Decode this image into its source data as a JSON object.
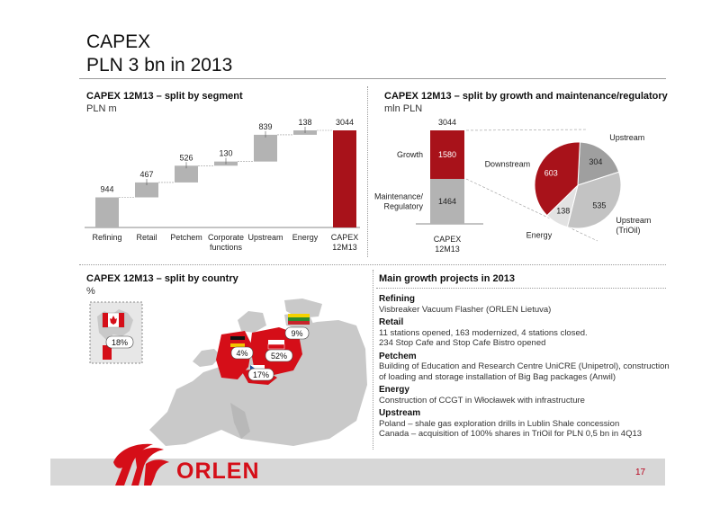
{
  "slide": {
    "title_line1": "CAPEX",
    "title_line2": "PLN 3 bn in 2013",
    "page_number": "17",
    "logo_text": "ORLEN"
  },
  "colors": {
    "bar_grey": "#b3b3b3",
    "accent_red": "#a8121a",
    "footer_grey": "#d7d7d7"
  },
  "segment_panel": {
    "title": "CAPEX 12M13 – split by segment",
    "subtitle": "PLN m"
  },
  "growth_panel": {
    "title": "CAPEX 12M13 – split by growth and maintenance/regulatory",
    "subtitle": "mln PLN"
  },
  "country_panel": {
    "title": "CAPEX 12M13 – split by country",
    "subtitle": "%",
    "labels": {
      "canada": "18%",
      "lithuania": "9%",
      "germany": "4%",
      "poland": "52%",
      "czech": "17%"
    }
  },
  "projects_panel": {
    "title": "Main growth projects in 2013",
    "items": [
      {
        "heading": "Refining",
        "lines": [
          "Visbreaker Vacuum Flasher (ORLEN Lietuva)"
        ]
      },
      {
        "heading": "Retail",
        "lines": [
          "11 stations opened, 163 modernized, 4 stations closed.",
          "234 Stop Cafe and Stop Cafe Bistro opened"
        ]
      },
      {
        "heading": "Petchem",
        "lines": [
          "Building of Education and Research Centre UniCRE (Unipetrol), construction",
          "of loading and storage installation of Big Bag packages (Anwil)"
        ]
      },
      {
        "heading": "Energy",
        "lines": [
          "Construction of CCGT in Włocławek with infrastructure"
        ]
      },
      {
        "heading": "Upstream",
        "lines": [
          "Poland – shale gas exploration drills in Lublin Shale concession",
          "Canada – acquisition of 100% shares in TriOil for PLN 0,5 bn in 4Q13"
        ]
      }
    ]
  },
  "chart_data": [
    {
      "type": "bar",
      "subtype": "waterfall",
      "title": "CAPEX 12M13 – split by segment",
      "ylabel": "PLN m",
      "categories": [
        "Refining",
        "Retail",
        "Petchem",
        "Corporate functions",
        "Upstream",
        "Energy",
        "CAPEX 12M13"
      ],
      "category_lines": [
        [
          "Refining"
        ],
        [
          "Retail"
        ],
        [
          "Petchem"
        ],
        [
          "Corporate",
          "functions"
        ],
        [
          "Upstream"
        ],
        [
          "Energy"
        ],
        [
          "CAPEX",
          "12M13"
        ]
      ],
      "values": [
        944,
        467,
        526,
        130,
        839,
        138,
        3044
      ],
      "total_index": 6,
      "ylim": [
        0,
        3044
      ]
    },
    {
      "type": "bar",
      "subtype": "stacked",
      "title": "CAPEX 12M13 – split by growth and maintenance/regulatory",
      "ylabel": "mln PLN",
      "categories": [
        "CAPEX 12M13"
      ],
      "category_lines": [
        "CAPEX",
        "12M13"
      ],
      "series": [
        {
          "name": "Maintenance/ Regulatory",
          "name_lines": [
            "Maintenance/",
            "Regulatory"
          ],
          "values": [
            1464
          ]
        },
        {
          "name": "Growth",
          "values": [
            1580
          ]
        }
      ],
      "total_label": "3044"
    },
    {
      "type": "pie",
      "title": "Growth",
      "slices": [
        {
          "name": "Upstream",
          "value": 304,
          "color": "#9f9f9f"
        },
        {
          "name": "Upstream (TriOil)",
          "name_lines": [
            "Upstream",
            "(TriOil)"
          ],
          "value": 535,
          "color": "#c3c3c3"
        },
        {
          "name": "Energy",
          "value": 138,
          "color": "#e2e2e2"
        },
        {
          "name": "Downstream",
          "value": 603,
          "color": "#a8121a"
        }
      ]
    }
  ]
}
